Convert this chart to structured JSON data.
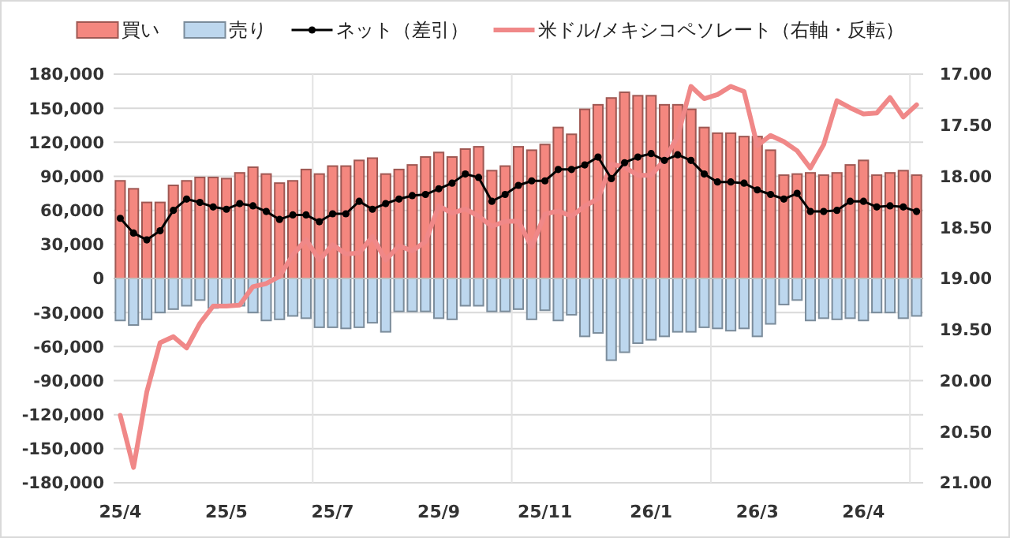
{
  "chart_data": {
    "type": "bar",
    "stacked": true,
    "categories": [
      "25/4",
      null,
      null,
      null,
      null,
      null,
      null,
      null,
      "25/5",
      null,
      null,
      null,
      null,
      null,
      null,
      null,
      "25/7",
      null,
      null,
      null,
      null,
      null,
      null,
      null,
      "25/9",
      null,
      null,
      null,
      null,
      null,
      null,
      null,
      "25/11",
      null,
      null,
      null,
      null,
      null,
      null,
      null,
      "26/1",
      null,
      null,
      null,
      null,
      null,
      null,
      null,
      "26/3",
      null,
      null,
      null,
      null,
      null,
      null,
      null,
      "26/4",
      null,
      null,
      null,
      null
    ],
    "series": [
      {
        "name": "買い",
        "color": "#f4877f",
        "values": [
          86000,
          79000,
          67000,
          67000,
          82000,
          86000,
          89000,
          89000,
          88000,
          93000,
          98000,
          92000,
          84000,
          86000,
          96000,
          92000,
          99000,
          99000,
          104000,
          106000,
          92000,
          96000,
          100000,
          107000,
          111000,
          107000,
          114000,
          116000,
          95000,
          99000,
          116000,
          113000,
          118000,
          133000,
          127000,
          149000,
          153000,
          159000,
          164000,
          161000,
          161000,
          153000,
          153000,
          149000,
          133000,
          128000,
          128000,
          125000,
          125000,
          113000,
          91000,
          92000,
          93000,
          91000,
          93000,
          100000,
          104000,
          91000,
          93000,
          95000,
          91000
        ]
      },
      {
        "name": "売り",
        "color": "#bdd7ee",
        "values": [
          -37000,
          -41000,
          -36000,
          -30000,
          -27000,
          -24000,
          -19000,
          -26000,
          -24000,
          -24000,
          -30000,
          -37000,
          -36000,
          -33000,
          -35000,
          -43000,
          -43000,
          -44000,
          -43000,
          -39000,
          -47000,
          -29000,
          -29000,
          -29000,
          -35000,
          -36000,
          -24000,
          -24000,
          -29000,
          -29000,
          -27000,
          -36000,
          -28000,
          -37000,
          -32000,
          -51000,
          -48000,
          -72000,
          -65000,
          -57000,
          -54000,
          -51000,
          -47000,
          -47000,
          -43000,
          -44000,
          -46000,
          -44000,
          -51000,
          -40000,
          -23000,
          -19000,
          -37000,
          -35000,
          -36000,
          -35000,
          -37000,
          -30000,
          -30000,
          -35000,
          -33000
        ]
      },
      {
        "name": "ネット（差引）",
        "type": "line",
        "color": "#000000",
        "marker": "circle",
        "values": [
          53000,
          40000,
          34000,
          42000,
          60000,
          70000,
          67000,
          63000,
          61000,
          66000,
          64000,
          59000,
          52000,
          56000,
          56000,
          50000,
          57000,
          57000,
          68000,
          61000,
          66000,
          70000,
          73000,
          74000,
          79000,
          84000,
          92000,
          89000,
          68000,
          74000,
          82000,
          86000,
          86000,
          96000,
          96000,
          100000,
          107000,
          88000,
          102000,
          107000,
          110000,
          104000,
          109000,
          104000,
          92000,
          85000,
          85000,
          84000,
          78000,
          74000,
          70000,
          75000,
          59000,
          59000,
          60000,
          68000,
          68000,
          63000,
          64000,
          63000,
          59000
        ]
      },
      {
        "name": "米ドル/メキシコペソレート（右軸・反転）",
        "type": "line",
        "axis": "y2",
        "color": "#f08888",
        "marker": "none",
        "values": [
          20.34,
          20.85,
          20.11,
          19.63,
          19.57,
          19.68,
          19.44,
          19.27,
          19.27,
          19.26,
          19.08,
          19.05,
          18.98,
          18.77,
          18.62,
          18.82,
          18.67,
          18.76,
          18.75,
          18.59,
          18.82,
          18.68,
          18.73,
          18.64,
          18.29,
          18.36,
          18.32,
          18.39,
          18.49,
          18.44,
          18.44,
          18.69,
          18.37,
          18.34,
          18.39,
          18.29,
          18.22,
          17.88,
          17.91,
          17.99,
          17.99,
          17.84,
          17.61,
          17.12,
          17.24,
          17.2,
          17.12,
          17.17,
          17.7,
          17.6,
          17.66,
          17.75,
          17.92,
          17.69,
          17.26,
          17.33,
          17.39,
          17.38,
          17.23,
          17.42,
          17.3
        ]
      }
    ],
    "ylim": [
      -180000,
      180000
    ],
    "yticks": [
      {
        "value": -180000,
        "label": "-180,000"
      },
      {
        "value": -150000,
        "label": "-150,000"
      },
      {
        "value": -120000,
        "label": "-120,000"
      },
      {
        "value": -90000,
        "label": "-90,000"
      },
      {
        "value": -60000,
        "label": "-60,000"
      },
      {
        "value": -30000,
        "label": "-30,000"
      },
      0,
      {
        "value": 30000,
        "label": "30,000"
      },
      {
        "value": 60000,
        "label": "60,000"
      },
      {
        "value": 90000,
        "label": "90,000"
      },
      {
        "value": 120000,
        "label": "120,000"
      },
      {
        "value": 150000,
        "label": "150,000"
      },
      {
        "value": 180000,
        "label": "180,000"
      }
    ],
    "y2lim": [
      21,
      17
    ],
    "y2ticks": [
      {
        "value": 17,
        "label": "17.00"
      },
      {
        "value": 17.5,
        "label": "17.50"
      },
      {
        "value": 18,
        "label": "18.00"
      },
      {
        "value": 18.5,
        "label": "18.50"
      },
      {
        "value": 19,
        "label": "19.00"
      },
      {
        "value": 19.5,
        "label": "19.50"
      },
      {
        "value": 20,
        "label": "20.00"
      },
      {
        "value": 20.5,
        "label": "20.50"
      },
      {
        "value": 21,
        "label": "21.00"
      }
    ],
    "grid": true,
    "legend": "top"
  }
}
